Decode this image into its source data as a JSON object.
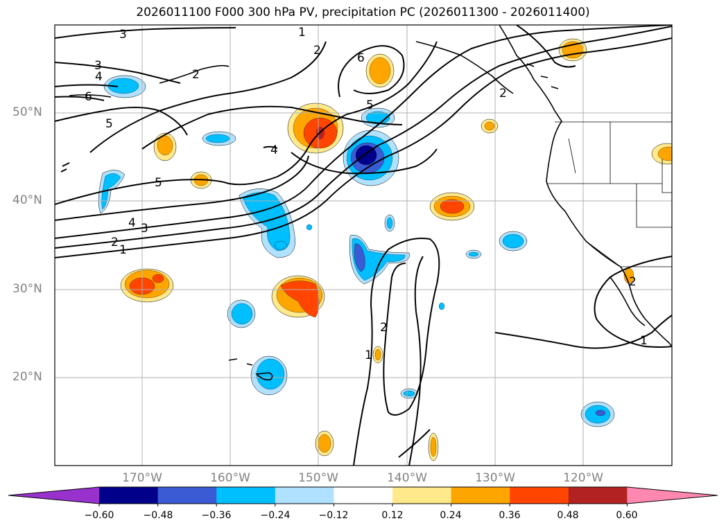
{
  "title": "2026011100 F000 300 hPa PV, precipitation PC (2026011300 - 2026011400)",
  "latitude_labels": [
    "50°N",
    "40°N",
    "30°N",
    "20°N"
  ],
  "longitude_labels": [
    "170°W",
    "160°W",
    "150°W",
    "140°W",
    "130°W",
    "120°W"
  ],
  "contour_labels": [
    "1",
    "2",
    "3",
    "3",
    "4",
    "5",
    "6",
    "2",
    "2",
    "5",
    "5",
    "6",
    "4",
    "3",
    "4",
    "2",
    "1",
    "2",
    "1",
    "2",
    "1"
  ],
  "colorbar": {
    "ticks": [
      "−0.60",
      "−0.48",
      "−0.36",
      "−0.24",
      "−0.12",
      "0.12",
      "0.24",
      "0.36",
      "0.48",
      "0.60"
    ],
    "colors": [
      "#9932cc",
      "#00008b",
      "#3a5bd4",
      "#00bfff",
      "#b0e2ff",
      "#ffffff",
      "#ffe98a",
      "#ffa500",
      "#ff4500",
      "#b22222",
      "#ff88b0"
    ]
  },
  "colors": {
    "positive_high": "#ff4500",
    "positive_mid": "#ffa500",
    "positive_low": "#ffe98a",
    "negative_low": "#b0e2ff",
    "negative_mid": "#00bfff",
    "negative_high": "#3a5bd4",
    "negative_max": "#00008b",
    "grid": "#b0b0b0",
    "contour": "#000000"
  }
}
